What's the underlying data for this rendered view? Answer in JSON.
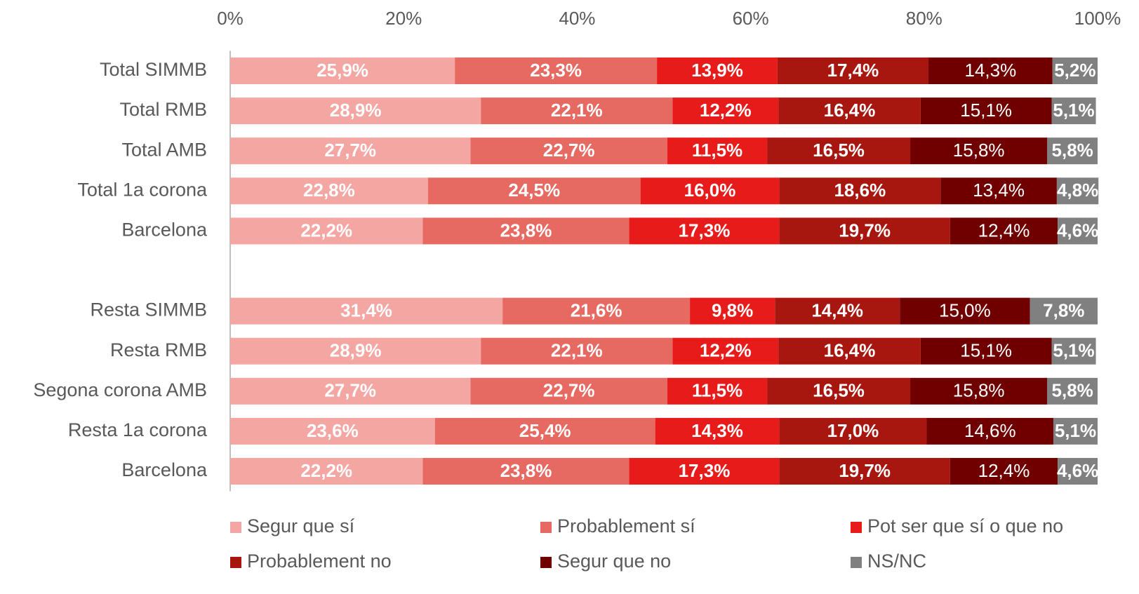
{
  "chart_data": {
    "type": "stacked_barh",
    "categories": [
      "Total SIMMB",
      "Total RMB",
      "Total AMB",
      "Total 1a corona",
      "Barcelona",
      null,
      "Resta SIMMB",
      "Resta RMB",
      "Segona corona AMB",
      "Resta 1a corona",
      "Barcelona"
    ],
    "series": [
      {
        "name": "Segur que sí",
        "color": "#f4a6a3",
        "values": [
          25.9,
          28.9,
          27.7,
          22.8,
          22.2,
          null,
          31.4,
          28.9,
          27.7,
          23.6,
          22.2
        ],
        "value_labels": [
          "25,9%",
          "28,9%",
          "27,7%",
          "22,8%",
          "22,2%",
          null,
          "31,4%",
          "28,9%",
          "27,7%",
          "23,6%",
          "22,2%"
        ]
      },
      {
        "name": "Probablement sí",
        "color": "#e76a62",
        "values": [
          23.3,
          22.1,
          22.7,
          24.5,
          23.8,
          null,
          21.6,
          22.1,
          22.7,
          25.4,
          23.8
        ],
        "value_labels": [
          "23,3%",
          "22,1%",
          "22,7%",
          "24,5%",
          "23,8%",
          null,
          "21,6%",
          "22,1%",
          "22,7%",
          "25,4%",
          "23,8%"
        ]
      },
      {
        "name": "Pot ser que sí o que no",
        "color": "#e81b1b",
        "values": [
          13.9,
          12.2,
          11.5,
          16.0,
          17.3,
          null,
          9.8,
          12.2,
          11.5,
          14.3,
          17.3
        ],
        "value_labels": [
          "13,9%",
          "12,2%",
          "11,5%",
          "16,0%",
          "17,3%",
          null,
          "9,8%",
          "12,2%",
          "11,5%",
          "14,3%",
          "17,3%"
        ]
      },
      {
        "name": "Probablement no",
        "color": "#a8170f",
        "values": [
          17.4,
          16.4,
          16.5,
          18.6,
          19.7,
          null,
          14.4,
          16.4,
          16.5,
          17.0,
          19.7
        ],
        "value_labels": [
          "17,4%",
          "16,4%",
          "16,5%",
          "18,6%",
          "19,7%",
          null,
          "14,4%",
          "16,4%",
          "16,5%",
          "17,0%",
          "19,7%"
        ]
      },
      {
        "name": "Segur que no",
        "color": "#700000",
        "values": [
          14.3,
          15.1,
          15.8,
          13.4,
          12.4,
          null,
          15.0,
          15.1,
          15.8,
          14.6,
          12.4
        ],
        "value_labels": [
          "14,3%",
          "15,1%",
          "15,8%",
          "13,4%",
          "12,4%",
          null,
          "15,0%",
          "15,1%",
          "15,8%",
          "14,6%",
          "12,4%"
        ]
      },
      {
        "name": "NS/NC",
        "color": "#808080",
        "values": [
          5.2,
          5.1,
          5.8,
          4.8,
          4.6,
          null,
          7.8,
          5.1,
          5.8,
          5.1,
          4.6
        ],
        "value_labels": [
          "5,2%",
          "5,1%",
          "5,8%",
          "4,8%",
          "4,6%",
          null,
          "7,8%",
          "5,1%",
          "5,8%",
          "5,1%",
          "4,6%"
        ]
      }
    ],
    "xlim": [
      0,
      100
    ],
    "xticks": [
      {
        "value": 0,
        "label": "0%"
      },
      {
        "value": 20,
        "label": "20%"
      },
      {
        "value": 40,
        "label": "40%"
      },
      {
        "value": 60,
        "label": "60%"
      },
      {
        "value": 80,
        "label": "80%"
      },
      {
        "value": 100,
        "label": "100%"
      }
    ],
    "legend": "bottom"
  }
}
